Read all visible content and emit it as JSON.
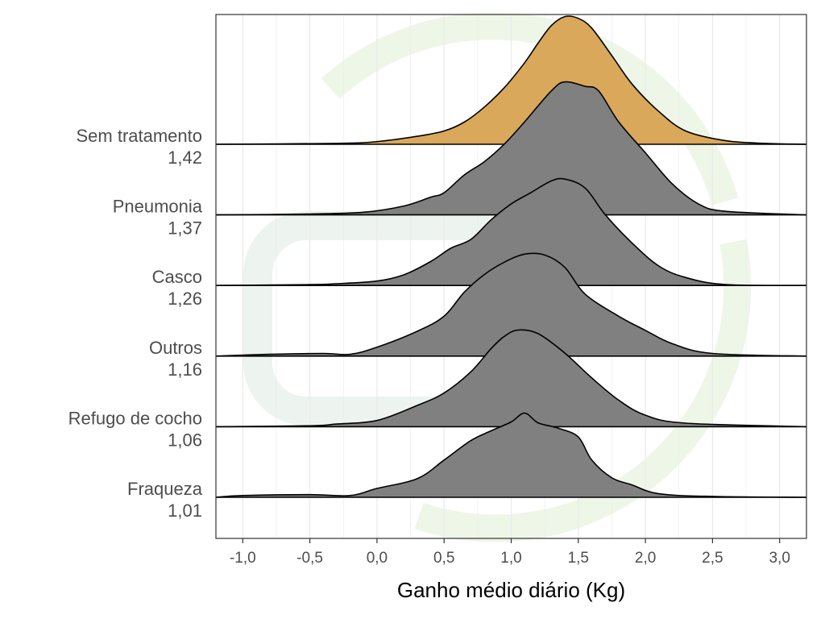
{
  "chart_data": {
    "type": "ridgeline",
    "title": "",
    "xlabel": "Ganho médio diário (Kg)",
    "ylabel": "",
    "xlim": [
      -1.2,
      3.2
    ],
    "x_ticks": [
      -1.0,
      -0.5,
      0.0,
      0.5,
      1.0,
      1.5,
      2.0,
      2.5,
      3.0
    ],
    "x_tick_labels": [
      "-1,0",
      "-0,5",
      "0,0",
      "0,5",
      "1,0",
      "1,5",
      "2,0",
      "2,5",
      "3,0"
    ],
    "grid": true,
    "legend": "none",
    "highlight_color": "#d9a85b",
    "fill_color": "#808080",
    "series": [
      {
        "name": "Fraqueza",
        "mean_label": "1,01",
        "density": [
          [
            -1.2,
            0.0
          ],
          [
            -1.0,
            0.02
          ],
          [
            -0.5,
            0.03
          ],
          [
            -0.2,
            0.02
          ],
          [
            0.0,
            0.1
          ],
          [
            0.3,
            0.21
          ],
          [
            0.5,
            0.42
          ],
          [
            0.7,
            0.64
          ],
          [
            0.85,
            0.75
          ],
          [
            1.0,
            0.85
          ],
          [
            1.1,
            0.95
          ],
          [
            1.2,
            0.84
          ],
          [
            1.35,
            0.78
          ],
          [
            1.5,
            0.68
          ],
          [
            1.6,
            0.42
          ],
          [
            1.75,
            0.22
          ],
          [
            1.9,
            0.14
          ],
          [
            2.1,
            0.04
          ],
          [
            2.5,
            0.01
          ],
          [
            3.2,
            0.0
          ]
        ]
      },
      {
        "name": "Refugo de cocho",
        "mean_label": "1,06",
        "density": [
          [
            -1.2,
            0.0
          ],
          [
            -0.5,
            0.01
          ],
          [
            -0.3,
            0.03
          ],
          [
            0.0,
            0.07
          ],
          [
            0.3,
            0.24
          ],
          [
            0.5,
            0.38
          ],
          [
            0.7,
            0.62
          ],
          [
            0.85,
            0.88
          ],
          [
            0.95,
            1.02
          ],
          [
            1.05,
            1.09
          ],
          [
            1.2,
            1.05
          ],
          [
            1.4,
            0.83
          ],
          [
            1.6,
            0.55
          ],
          [
            1.8,
            0.3
          ],
          [
            2.0,
            0.13
          ],
          [
            2.3,
            0.04
          ],
          [
            3.2,
            0.0
          ]
        ]
      },
      {
        "name": "Outros",
        "mean_label": "1,16",
        "density": [
          [
            -1.2,
            0.0
          ],
          [
            -0.8,
            0.02
          ],
          [
            -0.4,
            0.03
          ],
          [
            -0.2,
            0.02
          ],
          [
            0.0,
            0.1
          ],
          [
            0.3,
            0.28
          ],
          [
            0.5,
            0.45
          ],
          [
            0.65,
            0.72
          ],
          [
            0.8,
            0.92
          ],
          [
            0.95,
            1.06
          ],
          [
            1.1,
            1.15
          ],
          [
            1.25,
            1.14
          ],
          [
            1.4,
            1.0
          ],
          [
            1.55,
            0.7
          ],
          [
            1.8,
            0.45
          ],
          [
            2.0,
            0.29
          ],
          [
            2.2,
            0.14
          ],
          [
            2.5,
            0.03
          ],
          [
            3.2,
            0.0
          ]
        ]
      },
      {
        "name": "Casco",
        "mean_label": "1,26",
        "density": [
          [
            -1.2,
            0.0
          ],
          [
            -0.5,
            0.01
          ],
          [
            -0.3,
            0.02
          ],
          [
            0.0,
            0.05
          ],
          [
            0.2,
            0.12
          ],
          [
            0.4,
            0.27
          ],
          [
            0.55,
            0.42
          ],
          [
            0.7,
            0.52
          ],
          [
            0.85,
            0.74
          ],
          [
            1.0,
            0.92
          ],
          [
            1.15,
            1.05
          ],
          [
            1.3,
            1.18
          ],
          [
            1.4,
            1.2
          ],
          [
            1.55,
            1.1
          ],
          [
            1.7,
            0.8
          ],
          [
            1.9,
            0.48
          ],
          [
            2.1,
            0.22
          ],
          [
            2.3,
            0.09
          ],
          [
            2.6,
            0.01
          ],
          [
            3.2,
            0.0
          ]
        ]
      },
      {
        "name": "Pneumonia",
        "mean_label": "1,37",
        "density": [
          [
            -1.2,
            0.0
          ],
          [
            -0.5,
            0.01
          ],
          [
            -0.1,
            0.03
          ],
          [
            0.2,
            0.1
          ],
          [
            0.4,
            0.2
          ],
          [
            0.5,
            0.25
          ],
          [
            0.65,
            0.45
          ],
          [
            0.8,
            0.6
          ],
          [
            0.95,
            0.8
          ],
          [
            1.1,
            1.05
          ],
          [
            1.3,
            1.4
          ],
          [
            1.4,
            1.5
          ],
          [
            1.55,
            1.45
          ],
          [
            1.65,
            1.4
          ],
          [
            1.8,
            1.05
          ],
          [
            2.0,
            0.7
          ],
          [
            2.2,
            0.35
          ],
          [
            2.4,
            0.12
          ],
          [
            2.6,
            0.04
          ],
          [
            3.2,
            0.0
          ]
        ]
      },
      {
        "name": "Sem tratamento",
        "mean_label": "1,42",
        "density": [
          [
            -1.2,
            0.0
          ],
          [
            -0.3,
            0.01
          ],
          [
            0.0,
            0.03
          ],
          [
            0.3,
            0.09
          ],
          [
            0.5,
            0.15
          ],
          [
            0.65,
            0.25
          ],
          [
            0.8,
            0.42
          ],
          [
            0.95,
            0.64
          ],
          [
            1.1,
            0.92
          ],
          [
            1.2,
            1.14
          ],
          [
            1.3,
            1.34
          ],
          [
            1.4,
            1.44
          ],
          [
            1.5,
            1.42
          ],
          [
            1.6,
            1.31
          ],
          [
            1.75,
            1.0
          ],
          [
            1.9,
            0.68
          ],
          [
            2.1,
            0.37
          ],
          [
            2.3,
            0.15
          ],
          [
            2.6,
            0.04
          ],
          [
            2.9,
            0.01
          ],
          [
            3.2,
            0.0
          ]
        ]
      }
    ]
  }
}
